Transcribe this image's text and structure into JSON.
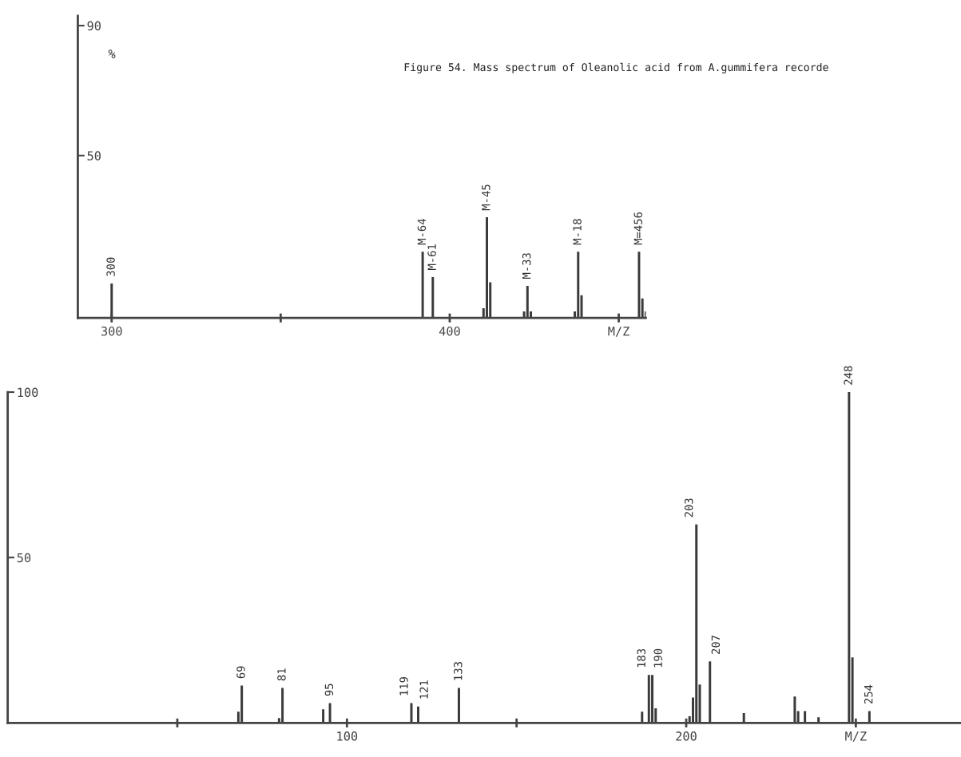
{
  "chart_data": [
    {
      "type": "bar",
      "title": "Figure 54. Mass spectrum of Oleanolic acid from A.gummifera recorde",
      "ylabel": "%",
      "x": [
        300,
        392,
        395,
        410,
        411,
        412,
        422,
        423,
        424,
        437,
        438,
        439,
        456,
        457,
        458
      ],
      "values": [
        10.6,
        20.4,
        12.6,
        3,
        31,
        11,
        2,
        9.9,
        2,
        2,
        20.4,
        7,
        20.4,
        6,
        2
      ],
      "color": "#3a3a3a",
      "xlim": [
        290,
        458
      ],
      "xticks": [
        300,
        {
          "value": 350,
          "label": null
        },
        400,
        {
          "value": 450,
          "label": "M/Z"
        }
      ],
      "ylim": [
        0,
        93
      ],
      "yticks": [
        50,
        90
      ],
      "annotations": [
        {
          "text": "300",
          "x": 300,
          "y": 10.6
        },
        {
          "text": "M-64",
          "x": 392,
          "y": 20.4
        },
        {
          "text": "M-61",
          "x": 395,
          "y": 12.6
        },
        {
          "text": "M-45",
          "x": 411,
          "y": 31
        },
        {
          "text": "M-33",
          "x": 423,
          "y": 9.9
        },
        {
          "text": "M-18",
          "x": 438,
          "y": 20.4
        },
        {
          "text": "M=456",
          "x": 456,
          "y": 20.4
        }
      ],
      "grid": false
    },
    {
      "type": "bar",
      "x": [
        68,
        69,
        80,
        81,
        93,
        95,
        119,
        121,
        133,
        187,
        189,
        190,
        191,
        201,
        202,
        203,
        204,
        207,
        217,
        232,
        233,
        235,
        239,
        248,
        249,
        254
      ],
      "values": [
        3.4,
        11.3,
        1.5,
        10.6,
        4.1,
        6,
        6,
        5,
        10.6,
        3.4,
        14.5,
        14.5,
        4.4,
        2,
        7.7,
        60,
        11.6,
        18.6,
        3,
        8,
        3.6,
        3.6,
        1.7,
        100,
        19.8,
        3.6
      ],
      "color": "#3a3a3a",
      "xlim": [
        0,
        281
      ],
      "xticks": [
        {
          "value": 50,
          "label": null
        },
        100,
        {
          "value": 150,
          "label": null
        },
        200,
        {
          "value": 250,
          "label": "M/Z"
        }
      ],
      "ylim": [
        0,
        100
      ],
      "yticks": [
        50,
        100
      ],
      "annotations": [
        {
          "text": "69",
          "x": 69,
          "y": 11.3
        },
        {
          "text": "81",
          "x": 81,
          "y": 10.6
        },
        {
          "text": "95",
          "x": 95,
          "y": 6
        },
        {
          "text": "119",
          "x": 119,
          "y": 6
        },
        {
          "text": "121",
          "x": 121,
          "y": 5
        },
        {
          "text": "133",
          "x": 133,
          "y": 10.6
        },
        {
          "text": "183",
          "x": 189,
          "y": 14.5
        },
        {
          "text": "190",
          "x": 190,
          "y": 14.5
        },
        {
          "text": "203",
          "x": 203,
          "y": 60
        },
        {
          "text": "207",
          "x": 207,
          "y": 18.6
        },
        {
          "text": "248",
          "x": 248,
          "y": 100
        },
        {
          "text": "254",
          "x": 254,
          "y": 3.6
        }
      ],
      "grid": false
    }
  ]
}
